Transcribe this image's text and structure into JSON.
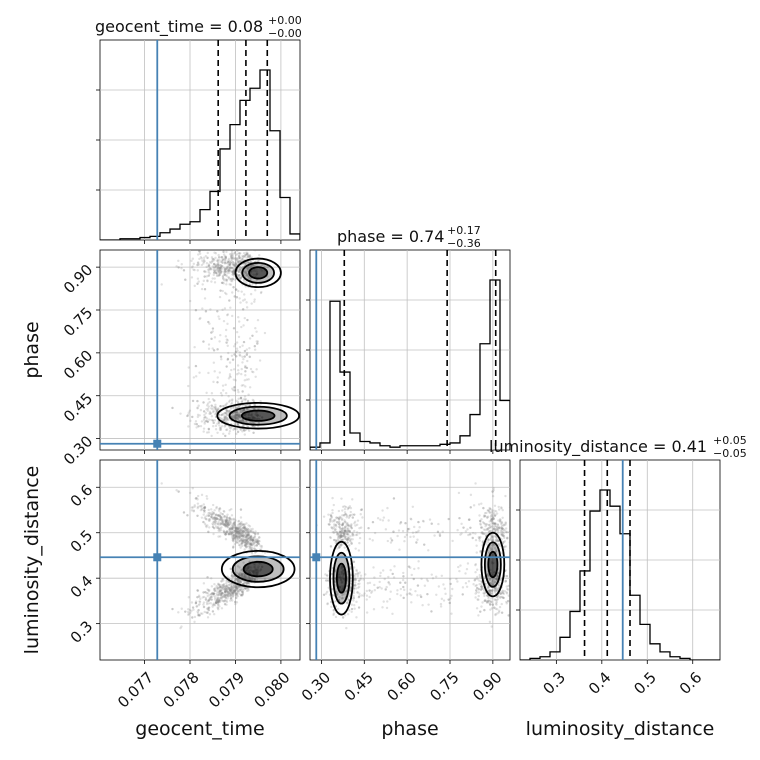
{
  "chart_data": {
    "type": "corner",
    "parameters": [
      "geocent_time",
      "phase",
      "luminosity_distance"
    ],
    "axis_labels": {
      "x": [
        "geocent_time",
        "phase",
        "luminosity_distance"
      ],
      "y": [
        "",
        "phase",
        "luminosity_distance"
      ]
    },
    "ranges": {
      "geocent_time": [
        0.07602,
        0.08042
      ],
      "phase": [
        0.26,
        0.96
      ],
      "luminosity_distance": [
        0.22,
        0.66
      ]
    },
    "ticks": {
      "geocent_time": [
        0.077,
        0.078,
        0.079,
        0.08
      ],
      "phase": [
        0.3,
        0.45,
        0.6,
        0.75,
        0.9
      ],
      "luminosity_distance": [
        0.3,
        0.4,
        0.5,
        0.6
      ]
    },
    "tick_labels": {
      "geocent_time": [
        "0.077",
        "0.078",
        "0.079",
        "0.080"
      ],
      "phase": [
        "0.30",
        "0.45",
        "0.60",
        "0.75",
        "0.90"
      ],
      "luminosity_distance_x": [
        "0.3",
        "0.4",
        "0.5",
        "0.6"
      ],
      "luminosity_distance_y": [
        "0.3",
        "0.4",
        "0.5",
        "0.6"
      ]
    },
    "titles": [
      {
        "param": "geocent_time",
        "median": "0.08",
        "plus": "+0.00",
        "minus": "−0.00"
      },
      {
        "param": "phase",
        "median": "0.74",
        "plus": "+0.17",
        "minus": "−0.36"
      },
      {
        "param": "luminosity_distance",
        "median": "0.41",
        "plus": "+0.05",
        "minus": "−0.05"
      }
    ],
    "truths": {
      "geocent_time": 0.07728,
      "phase": 0.282,
      "luminosity_distance": 0.446
    },
    "quantiles": {
      "geocent_time": [
        0.07862,
        0.07923,
        0.0797
      ],
      "phase": [
        0.38,
        0.74,
        0.91
      ],
      "luminosity_distance": [
        0.362,
        0.412,
        0.462
      ]
    },
    "histograms": {
      "geocent_time": {
        "bin_edges": [
          0.07602,
          0.07624,
          0.07646,
          0.07668,
          0.0769,
          0.07712,
          0.07734,
          0.07756,
          0.07778,
          0.078,
          0.07822,
          0.07844,
          0.07866,
          0.07888,
          0.0791,
          0.07932,
          0.07954,
          0.07976,
          0.07998,
          0.0802,
          0.08042
        ],
        "counts": [
          0,
          0,
          1,
          1,
          2,
          3,
          6,
          9,
          13,
          15,
          25,
          40,
          75,
          95,
          115,
          125,
          140,
          90,
          35,
          5
        ]
      },
      "phase": {
        "bin_edges": [
          0.26,
          0.295,
          0.33,
          0.365,
          0.4,
          0.435,
          0.47,
          0.505,
          0.54,
          0.575,
          0.61,
          0.645,
          0.68,
          0.715,
          0.75,
          0.785,
          0.82,
          0.855,
          0.89,
          0.925,
          0.96
        ],
        "counts": [
          2,
          5,
          105,
          55,
          12,
          6,
          5,
          3,
          2,
          3,
          3,
          3,
          3,
          4,
          5,
          10,
          25,
          75,
          120,
          35
        ]
      },
      "luminosity_distance": {
        "bin_edges": [
          0.22,
          0.242,
          0.264,
          0.286,
          0.308,
          0.33,
          0.352,
          0.374,
          0.396,
          0.418,
          0.44,
          0.462,
          0.484,
          0.506,
          0.528,
          0.55,
          0.572,
          0.594,
          0.616,
          0.638,
          0.66
        ],
        "counts": [
          0,
          1,
          2,
          5,
          14,
          30,
          55,
          92,
          105,
          95,
          78,
          40,
          22,
          10,
          5,
          2,
          1,
          0,
          0,
          0
        ]
      }
    },
    "grid": true,
    "colors": {
      "truth": "#4682b4",
      "hist": "#000000",
      "quantile": "#000000",
      "grid": "#c0c0c0",
      "points": "#888888",
      "density_dark": "#000000"
    }
  }
}
